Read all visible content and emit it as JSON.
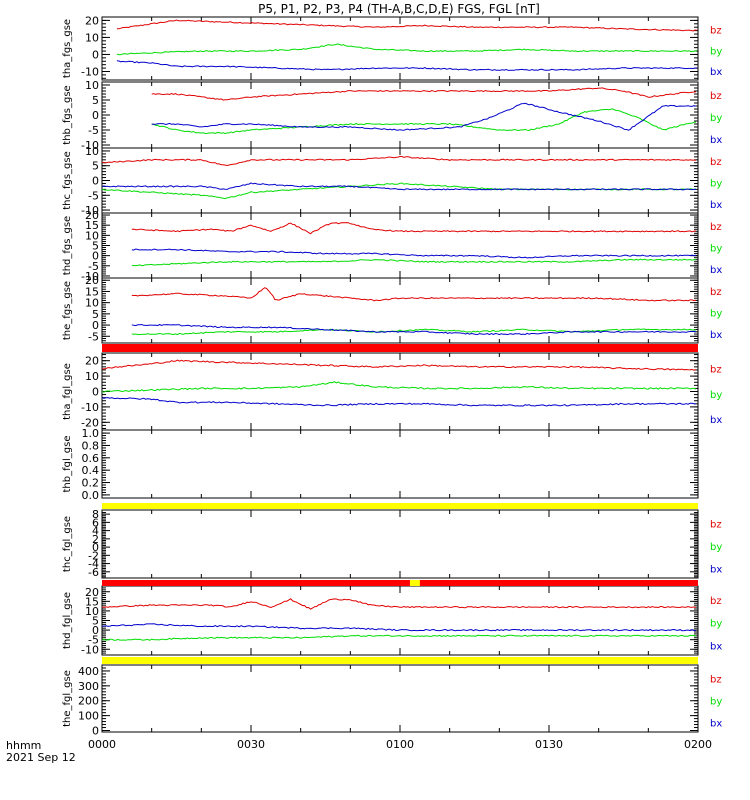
{
  "chart_data": {
    "type": "line",
    "title": "P5, P1, P2, P3, P4 (TH-A,B,C,D,E) FGS, FGL [nT]",
    "x_axis": {
      "label": "hhmm",
      "date_label": "2021 Sep 12",
      "ticks": [
        "0000",
        "0030",
        "0100",
        "0130",
        "0200"
      ],
      "range_minutes": [
        0,
        120
      ]
    },
    "series_names": [
      "bz",
      "by",
      "bx"
    ],
    "colors": {
      "bz": "#e00000",
      "by": "#00dd00",
      "bx": "#0000cc",
      "bar_red": "#ff0000",
      "bar_yellow": "#ffff00"
    },
    "panels": [
      {
        "ylabel": "tha_fgs_gse",
        "ylim": [
          -15,
          22
        ],
        "yticks": [
          "20",
          "10",
          "0",
          "-10"
        ],
        "ytick_vals": [
          20,
          10,
          0,
          -10
        ],
        "time_range": [
          3,
          120
        ],
        "series": [
          {
            "name": "bz",
            "t": [
              3,
              10,
              15,
              25,
              35,
              45,
              55,
              65,
              75,
              85,
              95,
              105,
              120
            ],
            "v": [
              15,
              18,
              20,
              19,
              18,
              17,
              16,
              17,
              16,
              16,
              16,
              15,
              14
            ]
          },
          {
            "name": "by",
            "t": [
              3,
              10,
              20,
              30,
              40,
              47,
              55,
              65,
              75,
              85,
              95,
              105,
              120
            ],
            "v": [
              0,
              1,
              2,
              2,
              3,
              6,
              3,
              2,
              2,
              3,
              2,
              2,
              2
            ]
          },
          {
            "name": "bx",
            "t": [
              3,
              10,
              15,
              25,
              35,
              45,
              55,
              65,
              75,
              85,
              95,
              105,
              120
            ],
            "v": [
              -4,
              -5,
              -7,
              -7,
              -8,
              -9,
              -8,
              -8,
              -9,
              -9,
              -9,
              -8,
              -8
            ]
          }
        ]
      },
      {
        "ylabel": "thb_fgs_gse",
        "ylim": [
          -11,
          11
        ],
        "yticks": [
          "10",
          "5",
          "0",
          "-5",
          "-10"
        ],
        "ytick_vals": [
          10,
          5,
          0,
          -5,
          -10
        ],
        "time_range": [
          10,
          120
        ],
        "series": [
          {
            "name": "bz",
            "t": [
              10,
              15,
              20,
              25,
              30,
              40,
              50,
              60,
              70,
              80,
              90,
              100,
              105,
              110,
              115,
              120
            ],
            "v": [
              7,
              7,
              6,
              5,
              6,
              7,
              8,
              8,
              8,
              8,
              8,
              9,
              8,
              6,
              7,
              8
            ]
          },
          {
            "name": "by",
            "t": [
              10,
              15,
              20,
              25,
              30,
              40,
              50,
              60,
              70,
              80,
              86,
              92,
              97,
              103,
              108,
              113,
              120
            ],
            "v": [
              -3,
              -5,
              -6,
              -6,
              -5,
              -4,
              -3,
              -3,
              -3,
              -5,
              -5,
              -3,
              1,
              2,
              -1,
              -5,
              -2
            ]
          },
          {
            "name": "bx",
            "t": [
              10,
              15,
              20,
              25,
              30,
              40,
              50,
              60,
              72,
              78,
              85,
              92,
              100,
              106,
              113,
              120
            ],
            "v": [
              -3,
              -3,
              -4,
              -3,
              -3,
              -4,
              -4,
              -5,
              -4,
              -1,
              4,
              1,
              -2,
              -5,
              3,
              3
            ]
          }
        ]
      },
      {
        "ylabel": "thc_fgs_gse",
        "ylim": [
          -11,
          11
        ],
        "yticks": [
          "10",
          "5",
          "0",
          "-5",
          "-10"
        ],
        "ytick_vals": [
          10,
          5,
          0,
          -5,
          -10
        ],
        "time_range": [
          0,
          120
        ],
        "series": [
          {
            "name": "bz",
            "t": [
              0,
              10,
              20,
              25,
              30,
              40,
              50,
              60,
              70,
              80,
              90,
              100,
              110,
              120
            ],
            "v": [
              6,
              7,
              7,
              5,
              7,
              7,
              7,
              8,
              7,
              7,
              7,
              7,
              7,
              7
            ]
          },
          {
            "name": "by",
            "t": [
              0,
              10,
              20,
              25,
              30,
              40,
              50,
              60,
              70,
              80,
              90,
              100,
              110,
              120
            ],
            "v": [
              -3,
              -4,
              -5,
              -6,
              -4,
              -3,
              -2,
              -1,
              -2,
              -3,
              -3,
              -3,
              -3,
              -3
            ]
          },
          {
            "name": "bx",
            "t": [
              0,
              10,
              20,
              25,
              30,
              40,
              50,
              60,
              70,
              80,
              90,
              100,
              110,
              120
            ],
            "v": [
              -2,
              -2,
              -2,
              -3,
              -1,
              -2,
              -2,
              -3,
              -3,
              -3,
              -3,
              -3,
              -3,
              -3
            ]
          }
        ]
      },
      {
        "ylabel": "thd_fgs_gse",
        "ylim": [
          -11,
          21
        ],
        "yticks": [
          "20",
          "15",
          "10",
          "5",
          "0",
          "-5",
          "-10"
        ],
        "ytick_vals": [
          20,
          15,
          10,
          5,
          0,
          -5,
          -10
        ],
        "time_range": [
          6,
          120
        ],
        "series": [
          {
            "name": "bz",
            "t": [
              6,
              15,
              22,
              26,
              30,
              34,
              38,
              42,
              46,
              50,
              54,
              60,
              70,
              80,
              90,
              100,
              110,
              120
            ],
            "v": [
              13,
              12,
              13,
              12,
              15,
              12,
              16,
              11,
              16,
              16,
              13,
              12,
              12,
              12,
              12,
              12,
              12,
              12
            ]
          },
          {
            "name": "by",
            "t": [
              6,
              15,
              25,
              35,
              45,
              55,
              65,
              75,
              85,
              95,
              105,
              120
            ],
            "v": [
              -5,
              -4,
              -3,
              -3,
              -3,
              -2,
              -3,
              -3,
              -3,
              -3,
              -2,
              -2
            ]
          },
          {
            "name": "bx",
            "t": [
              6,
              15,
              25,
              35,
              45,
              55,
              65,
              75,
              85,
              95,
              105,
              120
            ],
            "v": [
              3,
              3,
              2,
              2,
              1,
              1,
              0,
              0,
              -1,
              0,
              0,
              0
            ]
          }
        ]
      },
      {
        "ylabel": "the_fgs_gse",
        "ylim": [
          -8,
          21
        ],
        "yticks": [
          "20",
          "15",
          "10",
          "5",
          "0",
          "-5"
        ],
        "ytick_vals": [
          20,
          15,
          10,
          5,
          0,
          -5
        ],
        "time_range": [
          6,
          120
        ],
        "series": [
          {
            "name": "bz",
            "t": [
              6,
              15,
              25,
              30,
              33,
              35,
              40,
              45,
              50,
              55,
              60,
              70,
              80,
              90,
              100,
              110,
              120
            ],
            "v": [
              13,
              14,
              13,
              12,
              17,
              11,
              14,
              13,
              12,
              11,
              12,
              12,
              12,
              12,
              12,
              11,
              11
            ]
          },
          {
            "name": "by",
            "t": [
              6,
              15,
              25,
              35,
              45,
              55,
              65,
              75,
              85,
              95,
              105,
              120
            ],
            "v": [
              -4,
              -4,
              -3,
              -3,
              -2,
              -3,
              -2,
              -3,
              -2,
              -3,
              -2,
              -2
            ]
          },
          {
            "name": "bx",
            "t": [
              6,
              15,
              25,
              35,
              45,
              55,
              65,
              75,
              85,
              95,
              105,
              120
            ],
            "v": [
              0,
              0,
              -1,
              -1,
              -2,
              -3,
              -3,
              -4,
              -4,
              -3,
              -3,
              -3
            ]
          }
        ]
      },
      {
        "ylabel": "tha_fgl_gse",
        "ylim": [
          -25,
          25
        ],
        "yticks": [
          "20",
          "10",
          "0",
          "-10",
          "-20"
        ],
        "ytick_vals": [
          20,
          10,
          0,
          -10,
          -20
        ],
        "time_range": [
          0,
          120
        ],
        "series": [
          {
            "name": "bz",
            "t": [
              0,
              10,
              15,
              25,
              35,
              45,
              55,
              65,
              75,
              85,
              95,
              105,
              120
            ],
            "v": [
              15,
              18,
              20,
              19,
              18,
              17,
              16,
              17,
              16,
              16,
              16,
              15,
              14
            ]
          },
          {
            "name": "by",
            "t": [
              0,
              10,
              20,
              30,
              40,
              47,
              55,
              65,
              75,
              85,
              95,
              105,
              120
            ],
            "v": [
              0,
              1,
              2,
              2,
              3,
              6,
              3,
              2,
              2,
              3,
              2,
              2,
              2
            ]
          },
          {
            "name": "bx",
            "t": [
              0,
              10,
              15,
              25,
              35,
              45,
              55,
              65,
              75,
              85,
              95,
              105,
              120
            ],
            "v": [
              -4,
              -5,
              -7,
              -7,
              -8,
              -9,
              -8,
              -8,
              -9,
              -9,
              -9,
              -8,
              -8
            ]
          }
        ]
      },
      {
        "ylabel": "thb_fgl_gse",
        "ylim": [
          -0.05,
          1.05
        ],
        "yticks": [
          "1.0",
          "0.8",
          "0.6",
          "0.4",
          "0.2",
          "0.0"
        ],
        "ytick_vals": [
          1.0,
          0.8,
          0.6,
          0.4,
          0.2,
          0.0
        ],
        "series": []
      },
      {
        "ylabel": "thc_fgl_gse",
        "ylim": [
          -7.5,
          9
        ],
        "yticks": [
          "8",
          "6",
          "4",
          "2",
          "0",
          "-2",
          "-4",
          "-6"
        ],
        "ytick_vals": [
          8,
          6,
          4,
          2,
          0,
          -2,
          -4,
          -6
        ],
        "series": []
      },
      {
        "ylabel": "thd_fgl_gse",
        "ylim": [
          -13,
          23
        ],
        "yticks": [
          "20",
          "15",
          "10",
          "5",
          "0",
          "-5",
          "-10"
        ],
        "ytick_vals": [
          20,
          15,
          10,
          5,
          0,
          -5,
          -10
        ],
        "time_range": [
          0,
          120
        ],
        "series": [
          {
            "name": "bz",
            "t": [
              0,
              10,
              22,
              26,
              30,
              34,
              38,
              42,
              46,
              50,
              54,
              60,
              70,
              80,
              90,
              100,
              110,
              120
            ],
            "v": [
              12,
              13,
              13,
              12,
              15,
              12,
              16,
              11,
              16,
              16,
              13,
              12,
              12,
              12,
              12,
              12,
              12,
              12
            ]
          },
          {
            "name": "by",
            "t": [
              0,
              10,
              20,
              30,
              40,
              50,
              60,
              70,
              80,
              90,
              100,
              110,
              120
            ],
            "v": [
              -5,
              -5,
              -4,
              -4,
              -4,
              -3,
              -3,
              -3,
              -3,
              -3,
              -3,
              -3,
              -3
            ]
          },
          {
            "name": "bx",
            "t": [
              0,
              10,
              20,
              30,
              40,
              50,
              60,
              70,
              80,
              90,
              100,
              110,
              120
            ],
            "v": [
              2,
              3,
              2,
              2,
              1,
              1,
              0,
              0,
              0,
              0,
              0,
              0,
              0
            ]
          }
        ]
      },
      {
        "ylabel": "the_fgl_gse",
        "ylim": [
          -10,
          440
        ],
        "yticks": [
          "400",
          "300",
          "200",
          "100",
          "0"
        ],
        "ytick_vals": [
          400,
          300,
          200,
          100,
          0
        ],
        "series": []
      }
    ]
  }
}
